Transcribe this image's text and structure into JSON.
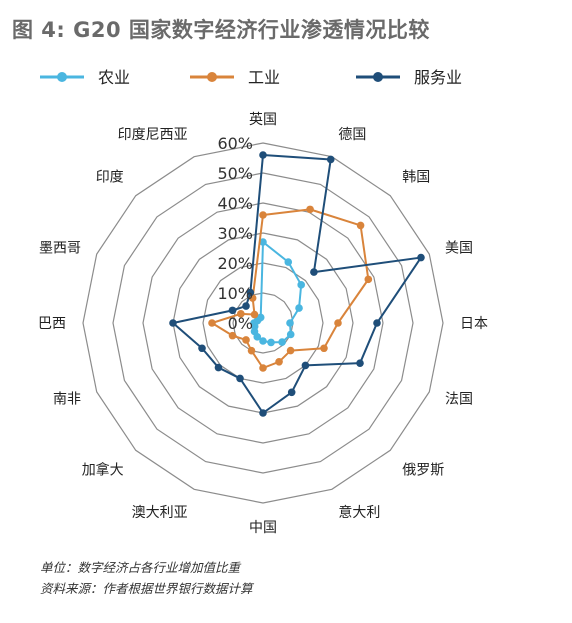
{
  "chart_data": {
    "type": "radar",
    "title": "图 4: G20 国家数字经济行业渗透情况比较",
    "categories": [
      "英国",
      "德国",
      "韩国",
      "美国",
      "日本",
      "法国",
      "俄罗斯",
      "意大利",
      "中国",
      "澳大利亚",
      "加拿大",
      "南非",
      "巴西",
      "墨西哥",
      "印度",
      "印度尼西亚"
    ],
    "radial_ticks": [
      "0%",
      "10%",
      "20%",
      "30%",
      "40%",
      "50%",
      "60%"
    ],
    "rlim": [
      0,
      60
    ],
    "grid": true,
    "legend_position": "top",
    "series": [
      {
        "name": "农业",
        "color": "#4ab6e0",
        "values": [
          27,
          22,
          18,
          13,
          9,
          10,
          9,
          7,
          6,
          5,
          4,
          3,
          3,
          2,
          2,
          2
        ]
      },
      {
        "name": "工业",
        "color": "#d9843b",
        "values": [
          36,
          41,
          46,
          38,
          25,
          22,
          13,
          14,
          15,
          10,
          8,
          11,
          17,
          8,
          4,
          9
        ]
      },
      {
        "name": "服务业",
        "color": "#1f4e79",
        "values": [
          56,
          59,
          24,
          57,
          38,
          35,
          20,
          25,
          30,
          20,
          21,
          22,
          30,
          11,
          8,
          11
        ]
      }
    ]
  },
  "notes": {
    "unit": "单位：数字经济占各行业增加值比重",
    "source": "资料来源：作者根据世界银行数据计算"
  }
}
